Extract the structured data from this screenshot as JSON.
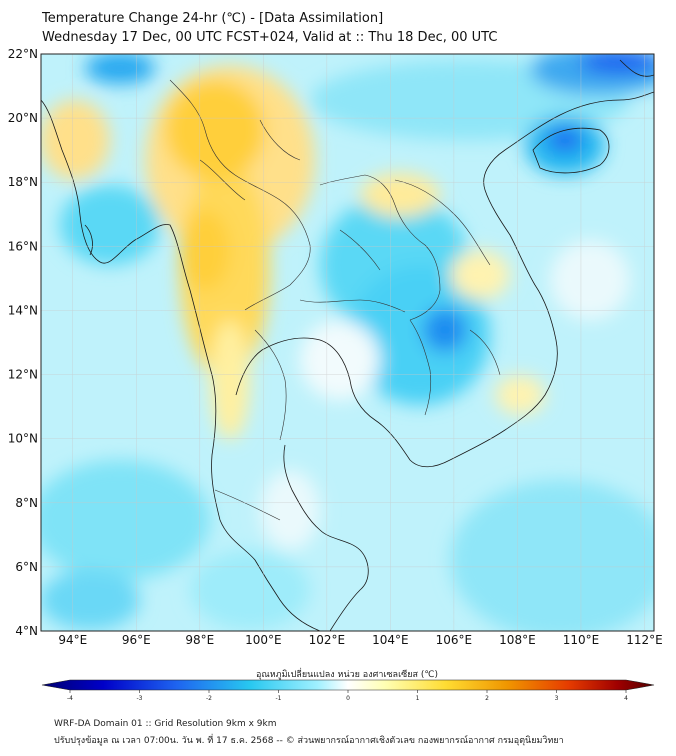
{
  "header": {
    "title": "Temperature Change 24-hr (℃) - [Data Assimilation]",
    "subtitle": "Wednesday 17 Dec, 00 UTC FCST+024, Valid at :: Thu 18 Dec, 00 UTC"
  },
  "map": {
    "lat_labels": [
      "22°N",
      "20°N",
      "18°N",
      "16°N",
      "14°N",
      "12°N",
      "10°N",
      "8°N",
      "6°N",
      "4°N"
    ],
    "lon_labels": [
      "94°E",
      "96°E",
      "98°E",
      "100°E",
      "102°E",
      "104°E",
      "106°E",
      "108°E",
      "110°E",
      "112°E"
    ],
    "lat_range": [
      4,
      22
    ],
    "lon_range": [
      93,
      112.3
    ]
  },
  "colorbar": {
    "label": "อุณหภูมิเปลี่ยนแปลง หน่วย องศาเซลเซียส (℃)",
    "ticks": [
      "-4",
      "-3",
      "-2",
      "-1",
      "0",
      "1",
      "2",
      "3",
      "4"
    ],
    "min": -4,
    "max": 4,
    "colors": [
      "#000070",
      "#0000c8",
      "#1e64f0",
      "#28c8f0",
      "#a0f0ff",
      "#ffffff",
      "#ffffb4",
      "#ffdc32",
      "#f09600",
      "#e63c00",
      "#a00000",
      "#500000"
    ]
  },
  "footer": {
    "line1": "WRF-DA Domain 01 :: Grid Resolution 9km x 9km",
    "line2": "ปรับปรุงข้อมูล ณ เวลา 07:00น. วัน พ. ที่ 17 ธ.ค. 2568 -- © ส่วนพยากรณ์อากาศเชิงตัวเลข กองพยากรณ์อากาศ กรมอุตุนิยมวิทยา"
  }
}
